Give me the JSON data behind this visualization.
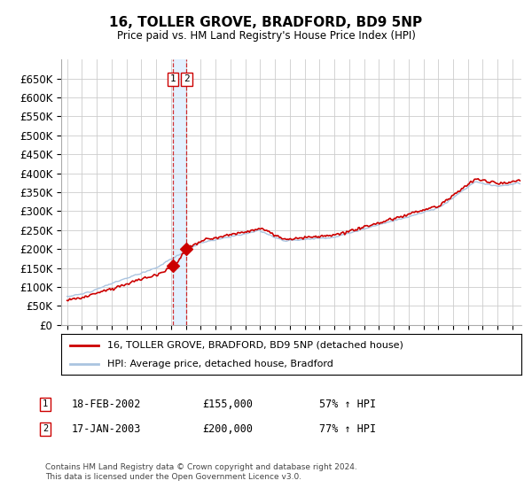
{
  "title": "16, TOLLER GROVE, BRADFORD, BD9 5NP",
  "subtitle": "Price paid vs. HM Land Registry's House Price Index (HPI)",
  "legend_line1": "16, TOLLER GROVE, BRADFORD, BD9 5NP (detached house)",
  "legend_line2": "HPI: Average price, detached house, Bradford",
  "transaction1_date_label": "18-FEB-2002",
  "transaction1_price_label": "£155,000",
  "transaction1_hpi_label": "57% ↑ HPI",
  "transaction2_date_label": "17-JAN-2003",
  "transaction2_price_label": "£200,000",
  "transaction2_hpi_label": "77% ↑ HPI",
  "footer": "Contains HM Land Registry data © Crown copyright and database right 2024.\nThis data is licensed under the Open Government Licence v3.0.",
  "hpi_color": "#aac4e0",
  "price_color": "#cc0000",
  "marker_color": "#cc0000",
  "vline_color": "#cc0000",
  "vband_color": "#ddeeff",
  "grid_color": "#cccccc",
  "background_color": "#ffffff",
  "ylim": [
    0,
    700000
  ],
  "yticks": [
    0,
    50000,
    100000,
    150000,
    200000,
    250000,
    300000,
    350000,
    400000,
    450000,
    500000,
    550000,
    600000,
    650000
  ],
  "trans1_year": 2002.13,
  "trans2_year": 2003.046,
  "trans1_price": 155000,
  "trans2_price": 200000
}
